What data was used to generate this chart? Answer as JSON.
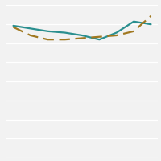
{
  "x": [
    0,
    1,
    2,
    3,
    4,
    5,
    6,
    7,
    8
  ],
  "teal_line": [
    34.5,
    34.3,
    34.1,
    34.0,
    33.8,
    33.5,
    34.0,
    34.8,
    34.6
  ],
  "orange_line": [
    34.4,
    33.8,
    33.5,
    33.5,
    33.6,
    33.7,
    33.8,
    34.1,
    35.2
  ],
  "teal_color": "#2a8f8f",
  "orange_color": "#a07820",
  "ylim": [
    25,
    36
  ],
  "yticks_count": 9,
  "background_color": "#f2f2f2",
  "plot_bg": "#f2f2f2",
  "grid_color": "#ffffff",
  "linewidth": 1.6
}
